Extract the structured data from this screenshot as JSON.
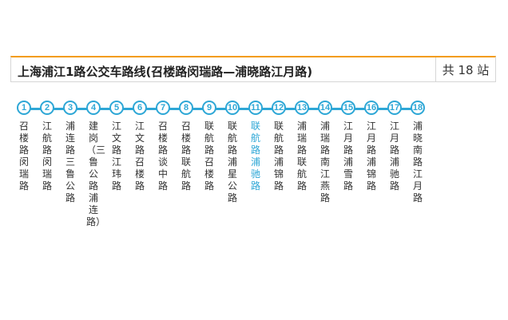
{
  "header": {
    "title": "上海浦江1路公交车路线(召楼路闵瑞路—浦晓路江月路)",
    "count": "共 18 站"
  },
  "colors": {
    "accent": "#2ea7d6",
    "top_border": "#f39c12"
  },
  "stops": [
    {
      "num": "1",
      "name": "召楼路闵瑞路"
    },
    {
      "num": "2",
      "name": "江航路闵瑞路"
    },
    {
      "num": "3",
      "name": "浦连路三鲁公路"
    },
    {
      "num": "4",
      "name": "建岗（三鲁公路浦连路）"
    },
    {
      "num": "5",
      "name": "江文路江玮路"
    },
    {
      "num": "6",
      "name": "江文路召楼路"
    },
    {
      "num": "7",
      "name": "召楼路谈中路"
    },
    {
      "num": "8",
      "name": "召楼路联航路"
    },
    {
      "num": "9",
      "name": "联航路召楼路"
    },
    {
      "num": "10",
      "name": "联航路浦星公路"
    },
    {
      "num": "11",
      "name": "联航路浦驰路"
    },
    {
      "num": "12",
      "name": "联航路浦锦路"
    },
    {
      "num": "13",
      "name": "浦瑞路联航路"
    },
    {
      "num": "14",
      "name": "浦瑞路南江燕路"
    },
    {
      "num": "15",
      "name": "江月路浦雪路"
    },
    {
      "num": "16",
      "name": "江月路浦锦路"
    },
    {
      "num": "17",
      "name": "江月路浦驰路"
    },
    {
      "num": "18",
      "name": "浦晓南路江月路"
    }
  ]
}
